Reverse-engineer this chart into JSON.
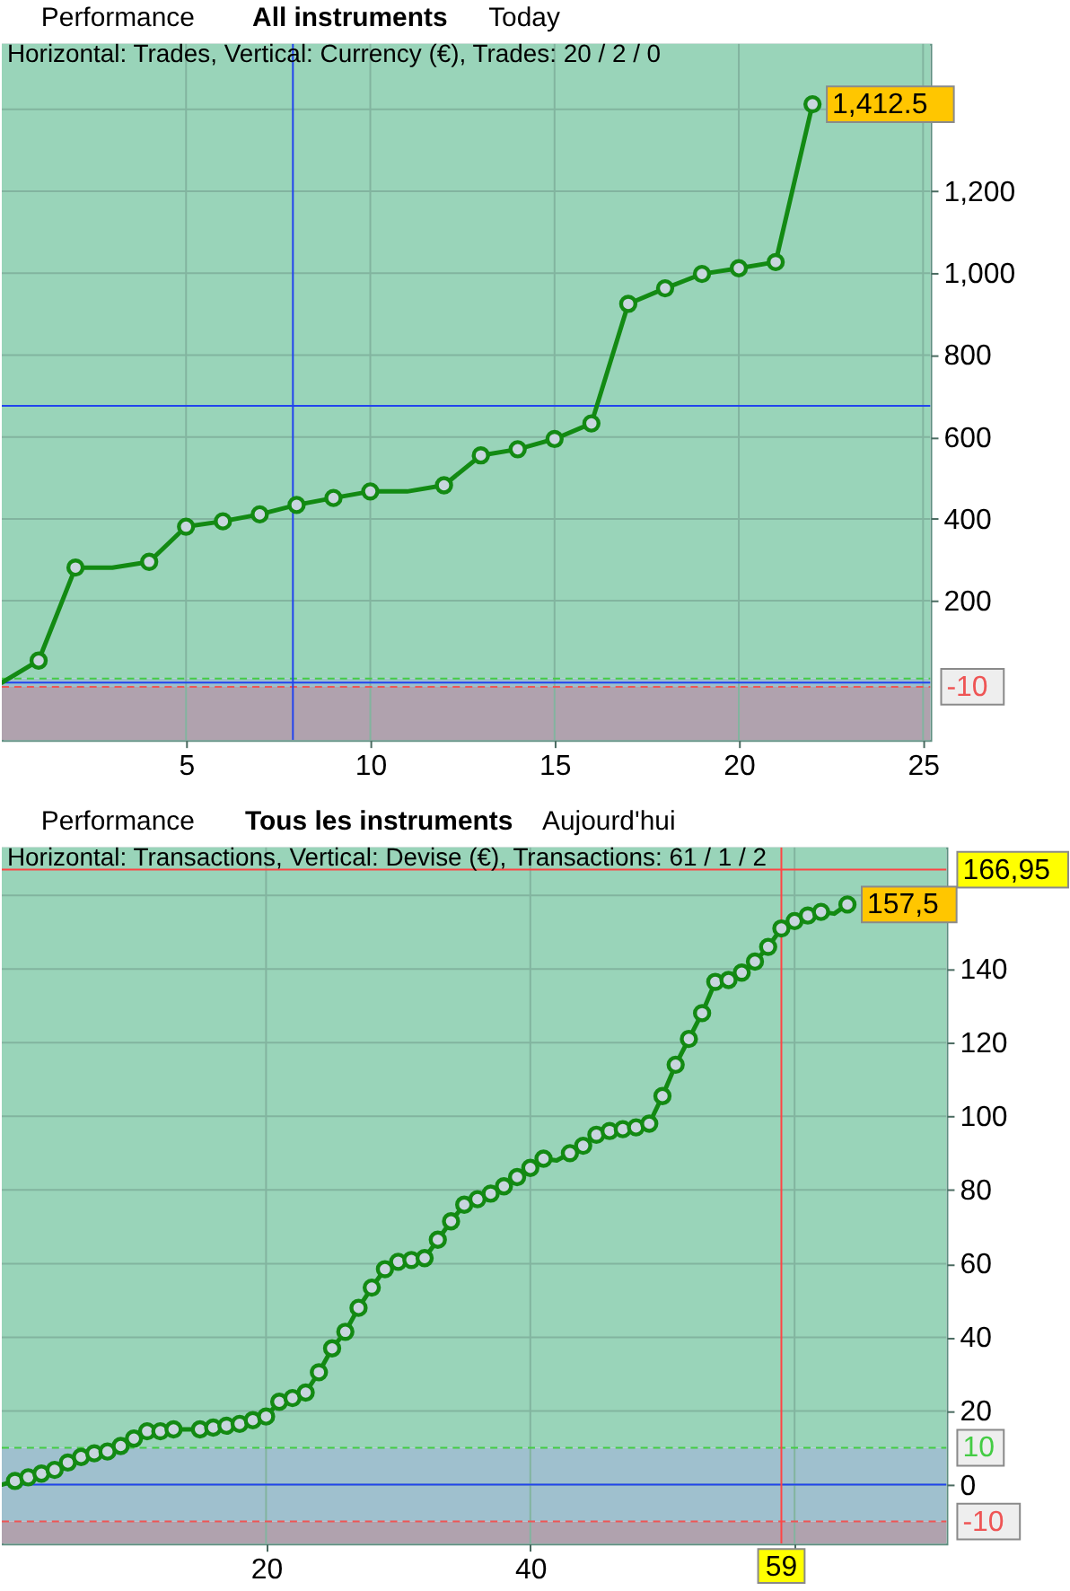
{
  "chart_data": [
    {
      "type": "line",
      "title": "Performance",
      "subtitle": "Horizontal: Trades, Vertical: Currency (€), Trades: 20 / 2 / 0",
      "annotations": [
        "All instruments",
        "Today"
      ],
      "xlim": [
        0,
        25.2
      ],
      "xticks": [
        5,
        10,
        15,
        20,
        25
      ],
      "ylim": [
        -140,
        1560
      ],
      "yticks": [
        200,
        400,
        600,
        800,
        {
          "value": 1000,
          "label": "1,000"
        },
        {
          "value": 1200,
          "label": "1,200"
        },
        {
          "value": 1400,
          "label": null
        }
      ],
      "grid": true,
      "series": [
        {
          "color": "#138a13",
          "marker": "none",
          "x": [
            0,
            1,
            2,
            3,
            4,
            5,
            6,
            7,
            8,
            9,
            10,
            11,
            12,
            13,
            14,
            15,
            16,
            17,
            18,
            19,
            20,
            21,
            22
          ],
          "values": [
            0,
            54,
            281,
            281,
            295,
            381,
            394,
            411,
            434,
            451,
            467,
            467,
            482,
            555,
            570,
            595,
            633,
            925,
            963,
            998,
            1012,
            1027,
            1412.5
          ],
          "value_labels": [
            null,
            null,
            null,
            null,
            null,
            null,
            null,
            null,
            null,
            null,
            null,
            null,
            null,
            null,
            null,
            null,
            null,
            null,
            null,
            null,
            null,
            null,
            "1,412.5"
          ]
        },
        {
          "type": "scatter",
          "color": "#138a13",
          "marker": "circle",
          "x": [
            1,
            2,
            4,
            5,
            6,
            7,
            8,
            9,
            10,
            12,
            13,
            14,
            15,
            16,
            17,
            18,
            19,
            20,
            21,
            22
          ],
          "values": [
            54,
            281,
            295,
            381,
            394,
            411,
            434,
            451,
            467,
            482,
            555,
            570,
            595,
            633,
            925,
            963,
            998,
            1012,
            1027,
            1412.5
          ]
        }
      ],
      "ref_lines": [
        {
          "axis": "y",
          "value": 10,
          "color": "#44cc44",
          "line_style": "dashed"
        },
        {
          "axis": "y",
          "value": -10,
          "label": "-10",
          "color": "#ee5555",
          "line_style": "dashed"
        },
        {
          "axis": "y",
          "value": 0,
          "color": "#2244ee"
        },
        {
          "axis": "x",
          "value": 7.9,
          "color": "#2244ee"
        },
        {
          "axis": "y",
          "value": 676,
          "color": "#2244ee"
        }
      ],
      "bands": [
        {
          "axis": "y",
          "from": 10,
          "to": 1560,
          "color": "#99d4b9"
        },
        {
          "axis": "y",
          "from": -10,
          "to": 10,
          "color": "#9dbfcb"
        },
        {
          "axis": "y",
          "from": -140,
          "to": -10,
          "color": "#b0a2ae"
        }
      ]
    },
    {
      "type": "line",
      "title": "Performance",
      "subtitle": "Horizontal: Transactions, Vertical: Devise (€), Transactions: 61 / 1 / 2",
      "annotations": [
        "Tous les instruments",
        "Aujourd'hui"
      ],
      "xlim": [
        0,
        71.5
      ],
      "xticks": [
        20,
        40,
        {
          "value": 60,
          "label": null
        }
      ],
      "ylim": [
        -16,
        173
      ],
      "yticks": [
        0,
        20,
        40,
        60,
        80,
        100,
        120,
        140,
        {
          "value": 160,
          "label": null
        }
      ],
      "grid": true,
      "series": [
        {
          "color": "#138a13",
          "marker": "none",
          "x": [
            0,
            1,
            2,
            3,
            4,
            5,
            6,
            7,
            8,
            9,
            10,
            11,
            12,
            13,
            14,
            15,
            16,
            17,
            18,
            19,
            20,
            21,
            22,
            23,
            24,
            25,
            26,
            27,
            28,
            29,
            30,
            31,
            32,
            33,
            34,
            35,
            36,
            37,
            38,
            39,
            40,
            41,
            42,
            43,
            44,
            45,
            46,
            47,
            48,
            49,
            50,
            51,
            52,
            53,
            54,
            55,
            56,
            57,
            58,
            59,
            60,
            61,
            62,
            63,
            64
          ],
          "values": [
            0,
            1,
            2,
            3,
            4,
            6,
            7.5,
            8.5,
            9,
            10.5,
            12.5,
            14.5,
            14.5,
            15,
            15,
            15,
            15.5,
            16,
            16.5,
            17.5,
            18.5,
            22.5,
            23.5,
            25,
            30.5,
            37,
            41.5,
            48,
            53.5,
            58.5,
            60.5,
            61,
            61.5,
            66.5,
            71.5,
            76,
            77.5,
            79,
            81,
            83.5,
            86,
            88.5,
            88,
            90,
            92,
            95,
            96,
            96.5,
            97,
            98,
            105.5,
            114,
            121,
            128,
            136.5,
            137,
            139,
            142,
            146,
            151,
            153,
            154.5,
            155.5,
            155,
            157.5
          ],
          "value_labels": [
            null,
            null,
            null,
            null,
            null,
            null,
            null,
            null,
            null,
            null,
            null,
            null,
            null,
            null,
            null,
            null,
            null,
            null,
            null,
            null,
            null,
            null,
            null,
            null,
            null,
            null,
            null,
            null,
            null,
            null,
            null,
            null,
            null,
            null,
            null,
            null,
            null,
            null,
            null,
            null,
            null,
            null,
            null,
            null,
            null,
            null,
            null,
            null,
            null,
            null,
            null,
            null,
            null,
            null,
            null,
            null,
            null,
            null,
            null,
            null,
            null,
            null,
            null,
            null,
            "157,5"
          ]
        },
        {
          "type": "scatter",
          "color": "#138a13",
          "marker": "circle",
          "x": [
            1,
            2,
            3,
            4,
            5,
            6,
            7,
            8,
            9,
            10,
            11,
            12,
            13,
            15,
            16,
            17,
            18,
            19,
            20,
            21,
            22,
            23,
            24,
            25,
            26,
            27,
            28,
            29,
            30,
            31,
            32,
            33,
            34,
            35,
            36,
            37,
            38,
            39,
            40,
            41,
            43,
            44,
            45,
            46,
            47,
            48,
            49,
            50,
            51,
            52,
            53,
            54,
            55,
            56,
            57,
            58,
            59,
            60,
            61,
            62,
            64
          ],
          "values": [
            1,
            2,
            3,
            4,
            6,
            7.5,
            8.5,
            9,
            10.5,
            12.5,
            14.5,
            14.5,
            15,
            15,
            15.5,
            16,
            16.5,
            17.5,
            18.5,
            22.5,
            23.5,
            25,
            30.5,
            37,
            41.5,
            48,
            53.5,
            58.5,
            60.5,
            61,
            61.5,
            66.5,
            71.5,
            76,
            77.5,
            79,
            81,
            83.5,
            86,
            88.5,
            90,
            92,
            95,
            96,
            96.5,
            97,
            98,
            105.5,
            114,
            121,
            128,
            136.5,
            137,
            139,
            142,
            146,
            151,
            153,
            154.5,
            155.5,
            157.5
          ]
        }
      ],
      "ref_lines": [
        {
          "axis": "y",
          "value": 10,
          "label": "10",
          "color": "#44cc44",
          "line_style": "dashed"
        },
        {
          "axis": "y",
          "value": -10,
          "label": "-10",
          "color": "#ee5555",
          "line_style": "dashed"
        },
        {
          "axis": "y",
          "value": 0,
          "color": "#2244ee"
        },
        {
          "axis": "x",
          "value": 59,
          "label": "59",
          "color": "#ff4444"
        },
        {
          "axis": "y",
          "value": 166.95,
          "label": "166,95",
          "color": "#ff4444"
        }
      ],
      "bands": [
        {
          "axis": "y",
          "from": 10,
          "to": 173,
          "color": "#99d4b9"
        },
        {
          "axis": "y",
          "from": -10,
          "to": 10,
          "color": "#9fc0ce"
        },
        {
          "axis": "y",
          "from": -16,
          "to": -10,
          "color": "#b0a2ae"
        }
      ]
    }
  ]
}
